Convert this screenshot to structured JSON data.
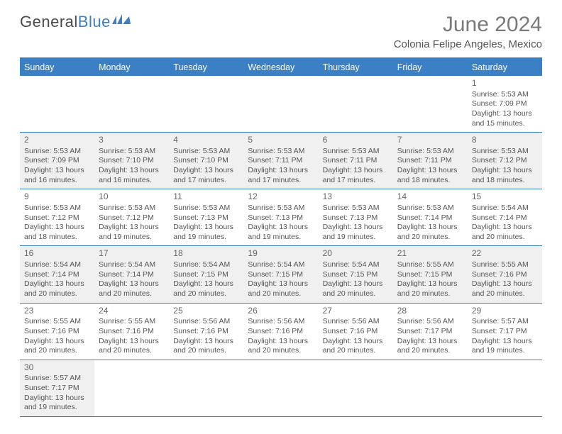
{
  "logo": {
    "text_gray": "General",
    "text_blue": "Blue"
  },
  "title": "June 2024",
  "location": "Colonia Felipe Angeles, Mexico",
  "colors": {
    "accent": "#3b7fc4",
    "shaded_bg": "#f0f0f0",
    "text": "#555555"
  },
  "day_names": [
    "Sunday",
    "Monday",
    "Tuesday",
    "Wednesday",
    "Thursday",
    "Friday",
    "Saturday"
  ],
  "weeks": [
    [
      null,
      null,
      null,
      null,
      null,
      null,
      {
        "d": "1",
        "sr": "Sunrise: 5:53 AM",
        "ss": "Sunset: 7:09 PM",
        "dl1": "Daylight: 13 hours",
        "dl2": "and 15 minutes.",
        "sh": false
      }
    ],
    [
      {
        "d": "2",
        "sr": "Sunrise: 5:53 AM",
        "ss": "Sunset: 7:09 PM",
        "dl1": "Daylight: 13 hours",
        "dl2": "and 16 minutes.",
        "sh": true
      },
      {
        "d": "3",
        "sr": "Sunrise: 5:53 AM",
        "ss": "Sunset: 7:10 PM",
        "dl1": "Daylight: 13 hours",
        "dl2": "and 16 minutes.",
        "sh": true
      },
      {
        "d": "4",
        "sr": "Sunrise: 5:53 AM",
        "ss": "Sunset: 7:10 PM",
        "dl1": "Daylight: 13 hours",
        "dl2": "and 17 minutes.",
        "sh": true
      },
      {
        "d": "5",
        "sr": "Sunrise: 5:53 AM",
        "ss": "Sunset: 7:11 PM",
        "dl1": "Daylight: 13 hours",
        "dl2": "and 17 minutes.",
        "sh": true
      },
      {
        "d": "6",
        "sr": "Sunrise: 5:53 AM",
        "ss": "Sunset: 7:11 PM",
        "dl1": "Daylight: 13 hours",
        "dl2": "and 17 minutes.",
        "sh": true
      },
      {
        "d": "7",
        "sr": "Sunrise: 5:53 AM",
        "ss": "Sunset: 7:11 PM",
        "dl1": "Daylight: 13 hours",
        "dl2": "and 18 minutes.",
        "sh": true
      },
      {
        "d": "8",
        "sr": "Sunrise: 5:53 AM",
        "ss": "Sunset: 7:12 PM",
        "dl1": "Daylight: 13 hours",
        "dl2": "and 18 minutes.",
        "sh": true
      }
    ],
    [
      {
        "d": "9",
        "sr": "Sunrise: 5:53 AM",
        "ss": "Sunset: 7:12 PM",
        "dl1": "Daylight: 13 hours",
        "dl2": "and 18 minutes.",
        "sh": false
      },
      {
        "d": "10",
        "sr": "Sunrise: 5:53 AM",
        "ss": "Sunset: 7:12 PM",
        "dl1": "Daylight: 13 hours",
        "dl2": "and 19 minutes.",
        "sh": false
      },
      {
        "d": "11",
        "sr": "Sunrise: 5:53 AM",
        "ss": "Sunset: 7:13 PM",
        "dl1": "Daylight: 13 hours",
        "dl2": "and 19 minutes.",
        "sh": false
      },
      {
        "d": "12",
        "sr": "Sunrise: 5:53 AM",
        "ss": "Sunset: 7:13 PM",
        "dl1": "Daylight: 13 hours",
        "dl2": "and 19 minutes.",
        "sh": false
      },
      {
        "d": "13",
        "sr": "Sunrise: 5:53 AM",
        "ss": "Sunset: 7:13 PM",
        "dl1": "Daylight: 13 hours",
        "dl2": "and 19 minutes.",
        "sh": false
      },
      {
        "d": "14",
        "sr": "Sunrise: 5:53 AM",
        "ss": "Sunset: 7:14 PM",
        "dl1": "Daylight: 13 hours",
        "dl2": "and 20 minutes.",
        "sh": false
      },
      {
        "d": "15",
        "sr": "Sunrise: 5:54 AM",
        "ss": "Sunset: 7:14 PM",
        "dl1": "Daylight: 13 hours",
        "dl2": "and 20 minutes.",
        "sh": false
      }
    ],
    [
      {
        "d": "16",
        "sr": "Sunrise: 5:54 AM",
        "ss": "Sunset: 7:14 PM",
        "dl1": "Daylight: 13 hours",
        "dl2": "and 20 minutes.",
        "sh": true
      },
      {
        "d": "17",
        "sr": "Sunrise: 5:54 AM",
        "ss": "Sunset: 7:14 PM",
        "dl1": "Daylight: 13 hours",
        "dl2": "and 20 minutes.",
        "sh": true
      },
      {
        "d": "18",
        "sr": "Sunrise: 5:54 AM",
        "ss": "Sunset: 7:15 PM",
        "dl1": "Daylight: 13 hours",
        "dl2": "and 20 minutes.",
        "sh": true
      },
      {
        "d": "19",
        "sr": "Sunrise: 5:54 AM",
        "ss": "Sunset: 7:15 PM",
        "dl1": "Daylight: 13 hours",
        "dl2": "and 20 minutes.",
        "sh": true
      },
      {
        "d": "20",
        "sr": "Sunrise: 5:54 AM",
        "ss": "Sunset: 7:15 PM",
        "dl1": "Daylight: 13 hours",
        "dl2": "and 20 minutes.",
        "sh": true
      },
      {
        "d": "21",
        "sr": "Sunrise: 5:55 AM",
        "ss": "Sunset: 7:15 PM",
        "dl1": "Daylight: 13 hours",
        "dl2": "and 20 minutes.",
        "sh": true
      },
      {
        "d": "22",
        "sr": "Sunrise: 5:55 AM",
        "ss": "Sunset: 7:16 PM",
        "dl1": "Daylight: 13 hours",
        "dl2": "and 20 minutes.",
        "sh": true
      }
    ],
    [
      {
        "d": "23",
        "sr": "Sunrise: 5:55 AM",
        "ss": "Sunset: 7:16 PM",
        "dl1": "Daylight: 13 hours",
        "dl2": "and 20 minutes.",
        "sh": false
      },
      {
        "d": "24",
        "sr": "Sunrise: 5:55 AM",
        "ss": "Sunset: 7:16 PM",
        "dl1": "Daylight: 13 hours",
        "dl2": "and 20 minutes.",
        "sh": false
      },
      {
        "d": "25",
        "sr": "Sunrise: 5:56 AM",
        "ss": "Sunset: 7:16 PM",
        "dl1": "Daylight: 13 hours",
        "dl2": "and 20 minutes.",
        "sh": false
      },
      {
        "d": "26",
        "sr": "Sunrise: 5:56 AM",
        "ss": "Sunset: 7:16 PM",
        "dl1": "Daylight: 13 hours",
        "dl2": "and 20 minutes.",
        "sh": false
      },
      {
        "d": "27",
        "sr": "Sunrise: 5:56 AM",
        "ss": "Sunset: 7:16 PM",
        "dl1": "Daylight: 13 hours",
        "dl2": "and 20 minutes.",
        "sh": false
      },
      {
        "d": "28",
        "sr": "Sunrise: 5:56 AM",
        "ss": "Sunset: 7:17 PM",
        "dl1": "Daylight: 13 hours",
        "dl2": "and 20 minutes.",
        "sh": false
      },
      {
        "d": "29",
        "sr": "Sunrise: 5:57 AM",
        "ss": "Sunset: 7:17 PM",
        "dl1": "Daylight: 13 hours",
        "dl2": "and 19 minutes.",
        "sh": false
      }
    ],
    [
      {
        "d": "30",
        "sr": "Sunrise: 5:57 AM",
        "ss": "Sunset: 7:17 PM",
        "dl1": "Daylight: 13 hours",
        "dl2": "and 19 minutes.",
        "sh": true
      },
      null,
      null,
      null,
      null,
      null,
      null
    ]
  ]
}
